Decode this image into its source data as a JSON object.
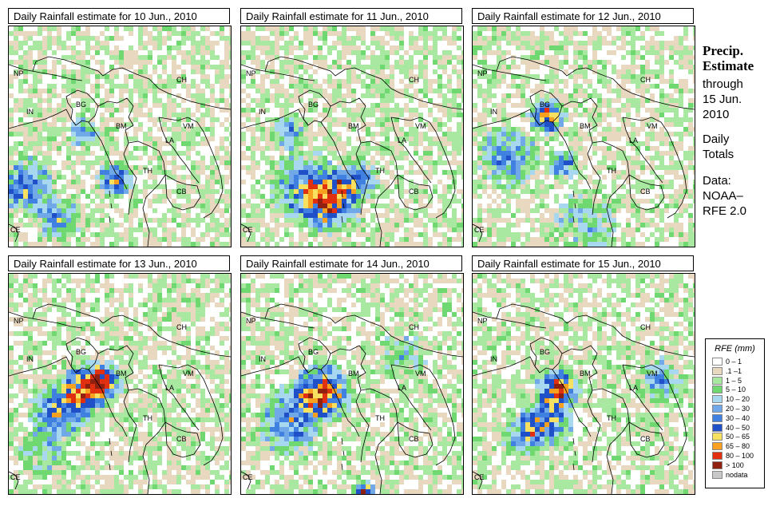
{
  "panels": [
    {
      "title": "Daily Rainfall estimate for  10 Jun., 2010"
    },
    {
      "title": "Daily Rainfall estimate for  11 Jun., 2010"
    },
    {
      "title": "Daily Rainfall estimate for  12 Jun., 2010"
    },
    {
      "title": "Daily Rainfall estimate for  13 Jun., 2010"
    },
    {
      "title": "Daily Rainfall estimate for  14 Jun., 2010"
    },
    {
      "title": "Daily Rainfall estimate for  15 Jun., 2010"
    }
  ],
  "country_labels": [
    "NP",
    "CH",
    "IN",
    "BG",
    "BM",
    "VM",
    "LA",
    "TH",
    "CB",
    "CE"
  ],
  "side": {
    "title_line1": "Precip.",
    "title_line2": "Estimate",
    "through": "through",
    "date_line1": "15 Jun.",
    "date_line2": "2010",
    "daily_line1": "Daily",
    "daily_line2": "Totals",
    "data_line1": "Data:",
    "data_line2": "NOAA–",
    "data_line3": "RFE 2.0"
  },
  "legend": {
    "title": "RFE (mm)",
    "items": [
      {
        "label": "0 – 1",
        "color": "#ffffff"
      },
      {
        "label": ".1 –1",
        "color": "#e8d8c0"
      },
      {
        "label": "1 – 5",
        "color": "#a8e8a0"
      },
      {
        "label": "5 – 10",
        "color": "#70d870"
      },
      {
        "label": "10 – 20",
        "color": "#a8d8f0"
      },
      {
        "label": "20 – 30",
        "color": "#70a8e8"
      },
      {
        "label": "30 – 40",
        "color": "#4080e0"
      },
      {
        "label": "40 – 50",
        "color": "#2050c8"
      },
      {
        "label": "50 – 65",
        "color": "#f8e060"
      },
      {
        "label": "65 – 80",
        "color": "#f8a020"
      },
      {
        "label": "80 – 100",
        "color": "#e03010"
      },
      {
        "label": "> 100",
        "color": "#902010"
      },
      {
        "label": "nodata",
        "color": "#c8c8c8"
      }
    ]
  }
}
